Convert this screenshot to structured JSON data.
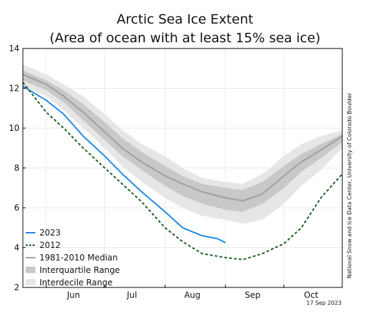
{
  "chart_data": {
    "type": "line",
    "title": "Arctic Sea Ice Extent",
    "subtitle": "(Area of ocean with at least 15% sea ice)",
    "xlabel": "",
    "ylabel": "",
    "x_ticks": [
      "Jun",
      "Jul",
      "Aug",
      "Sep",
      "Oct"
    ],
    "y_ticks": [
      "2",
      "4",
      "6",
      "8",
      "10",
      "12",
      "14"
    ],
    "ylim": [
      2,
      14
    ],
    "grid": true,
    "legend_position": "bottom-left",
    "credit": "National Snow and Ice Data Center, University of Colorado Boulder",
    "date_stamp": "17 Sep 2023",
    "legend": [
      {
        "label": "2023",
        "style": "line",
        "color": "#1e88e5"
      },
      {
        "label": "2012",
        "style": "dashed",
        "color": "#1b5e20"
      },
      {
        "label": "1981-2010 Median",
        "style": "line",
        "color": "#9e9e9e"
      },
      {
        "label": "Interquartile Range",
        "style": "band",
        "color": "#c8c8c8"
      },
      {
        "label": "Interdecile Range",
        "style": "band",
        "color": "#e6e6e6"
      }
    ],
    "x_domain": [
      "May 20",
      "Oct 31"
    ],
    "series": [
      {
        "name": "1981-2010 Median",
        "color": "#9e9e9e",
        "dates": [
          "May 20",
          "Jun 1",
          "Jun 10",
          "Jun 20",
          "Jul 1",
          "Jul 10",
          "Jul 20",
          "Aug 1",
          "Aug 10",
          "Aug 20",
          "Sep 1",
          "Sep 10",
          "Sep 20",
          "Oct 1",
          "Oct 10",
          "Oct 20",
          "Oct 31"
        ],
        "values": [
          12.7,
          12.2,
          11.6,
          10.8,
          9.8,
          9.0,
          8.3,
          7.6,
          7.2,
          6.8,
          6.5,
          6.35,
          6.7,
          7.6,
          8.3,
          8.9,
          9.6
        ]
      },
      {
        "name": "2023",
        "color": "#1e88e5",
        "dates": [
          "May 20",
          "Jun 1",
          "Jun 10",
          "Jun 20",
          "Jul 1",
          "Jul 10",
          "Jul 20",
          "Aug 1",
          "Aug 10",
          "Aug 20",
          "Aug 28",
          "Sep 1"
        ],
        "values": [
          12.1,
          11.4,
          10.7,
          9.6,
          8.6,
          7.7,
          6.8,
          5.8,
          5.0,
          4.6,
          4.45,
          4.25
        ]
      },
      {
        "name": "2012",
        "color": "#1b5e20",
        "dates": [
          "May 20",
          "Jun 1",
          "Jun 10",
          "Jun 20",
          "Jul 1",
          "Jul 10",
          "Jul 20",
          "Aug 1",
          "Aug 10",
          "Aug 20",
          "Sep 1",
          "Sep 10",
          "Sep 20",
          "Oct 1",
          "Oct 10",
          "Oct 20",
          "Oct 31"
        ],
        "values": [
          12.3,
          10.8,
          10.0,
          9.0,
          8.0,
          7.2,
          6.3,
          5.0,
          4.3,
          3.7,
          3.5,
          3.4,
          3.7,
          4.2,
          5.0,
          6.5,
          7.7
        ]
      }
    ],
    "bands": [
      {
        "name": "Interdecile Range",
        "color": "#e6e6e6",
        "dates": [
          "May 20",
          "Jun 1",
          "Jun 10",
          "Jun 20",
          "Jul 1",
          "Jul 10",
          "Jul 20",
          "Aug 1",
          "Aug 10",
          "Aug 20",
          "Sep 1",
          "Sep 10",
          "Sep 20",
          "Oct 1",
          "Oct 10",
          "Oct 20",
          "Oct 31"
        ],
        "lower": [
          12.1,
          11.6,
          10.9,
          10.0,
          9.0,
          8.1,
          7.3,
          6.5,
          6.0,
          5.6,
          5.4,
          5.2,
          5.4,
          6.2,
          7.1,
          7.9,
          9.0
        ],
        "upper": [
          13.2,
          12.7,
          12.2,
          11.6,
          10.7,
          9.9,
          9.2,
          8.6,
          8.0,
          7.5,
          7.3,
          7.2,
          7.7,
          8.6,
          9.2,
          9.6,
          9.9
        ]
      },
      {
        "name": "Interquartile Range",
        "color": "#c8c8c8",
        "dates": [
          "May 20",
          "Jun 1",
          "Jun 10",
          "Jun 20",
          "Jul 1",
          "Jul 10",
          "Jul 20",
          "Aug 1",
          "Aug 10",
          "Aug 20",
          "Sep 1",
          "Sep 10",
          "Sep 20",
          "Oct 1",
          "Oct 10",
          "Oct 20",
          "Oct 31"
        ],
        "lower": [
          12.4,
          11.9,
          11.3,
          10.4,
          9.4,
          8.6,
          7.9,
          7.1,
          6.6,
          6.2,
          5.9,
          5.8,
          6.2,
          7.0,
          7.8,
          8.5,
          9.3
        ],
        "upper": [
          12.9,
          12.4,
          11.9,
          11.2,
          10.3,
          9.5,
          8.8,
          8.1,
          7.6,
          7.2,
          7.0,
          6.9,
          7.3,
          8.1,
          8.7,
          9.2,
          9.7
        ]
      }
    ]
  }
}
